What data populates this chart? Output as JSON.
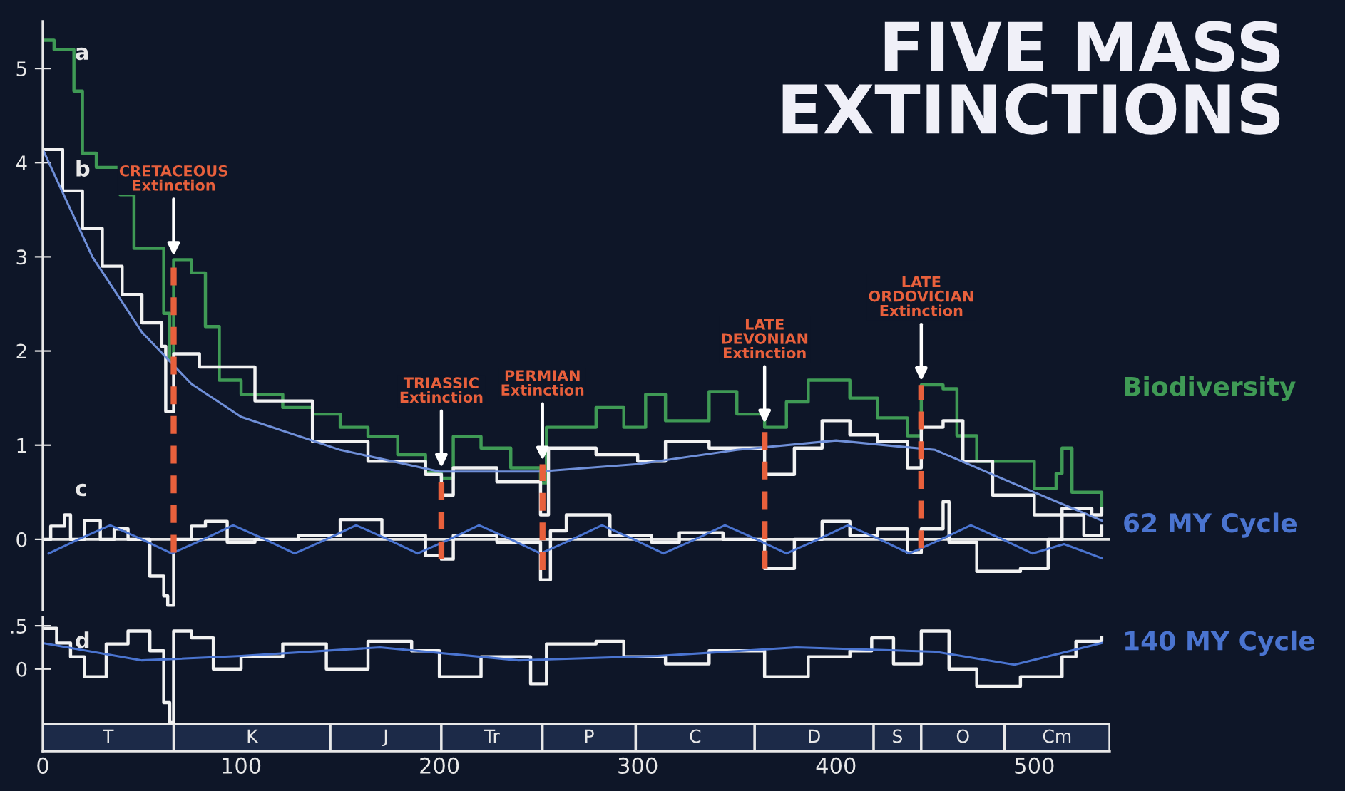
{
  "chart_data": [
    {
      "type": "line",
      "title": "FIVE MASS\nEXTINCTIONS",
      "xlim": [
        0,
        538
      ],
      "ylim": [
        -0.75,
        5.5
      ],
      "yticks": [
        0,
        1,
        2,
        3,
        4,
        5
      ],
      "tick_labels": "y",
      "grid": false,
      "legend": false,
      "line_style": "solid",
      "series": [
        {
          "name": "Biodiversity",
          "type": "step",
          "color": "#3f9a55",
          "x": [
            0,
            5.7,
            15.7,
            20,
            27,
            39,
            46,
            61,
            64,
            66,
            75,
            82,
            89,
            100,
            121,
            136,
            150,
            164,
            179,
            193,
            201,
            207,
            221,
            236,
            251,
            254,
            279,
            293,
            304,
            314,
            336,
            350,
            364,
            375,
            386,
            407,
            421,
            436,
            443,
            454,
            461,
            471,
            500,
            511,
            514,
            519,
            534
          ],
          "values": [
            5.3,
            5.2,
            4.76,
            4.1,
            3.95,
            3.66,
            3.09,
            2.4,
            1.9,
            2.97,
            2.83,
            2.26,
            1.69,
            1.54,
            1.4,
            1.33,
            1.19,
            1.09,
            0.9,
            0.71,
            0.65,
            1.09,
            0.97,
            0.76,
            0.6,
            1.19,
            1.4,
            1.19,
            1.54,
            1.26,
            1.57,
            1.33,
            1.19,
            1.46,
            1.69,
            1.5,
            1.29,
            1.1,
            1.64,
            1.6,
            1.1,
            0.83,
            0.54,
            0.7,
            0.97,
            0.5,
            0.3
          ]
        },
        {
          "type": "step",
          "color": "#f2f2f2",
          "x": [
            0,
            10,
            20,
            30,
            40,
            50,
            60,
            62,
            64,
            66,
            79,
            107,
            136,
            164,
            193,
            201,
            207,
            229,
            251,
            255,
            279,
            300,
            314,
            336,
            364,
            379,
            393,
            407,
            421,
            436,
            443,
            454,
            464,
            479,
            500,
            514,
            529,
            534
          ],
          "values": [
            4.14,
            3.7,
            3.3,
            2.9,
            2.6,
            2.3,
            2.05,
            1.36,
            1.36,
            1.97,
            1.83,
            1.47,
            1.04,
            0.83,
            0.69,
            0.47,
            0.76,
            0.61,
            0.26,
            0.97,
            0.9,
            0.83,
            1.04,
            0.97,
            0.69,
            0.97,
            1.26,
            1.11,
            1.04,
            0.76,
            1.19,
            1.26,
            0.83,
            0.47,
            0.26,
            0.33,
            0.26,
            0.33
          ]
        },
        {
          "type": "line",
          "color": "#6f8fd8",
          "x": [
            0,
            25,
            50,
            75,
            100,
            150,
            200,
            250,
            300,
            350,
            400,
            450,
            500,
            534
          ],
          "values": [
            4.14,
            3.0,
            2.2,
            1.65,
            1.3,
            0.95,
            0.72,
            0.72,
            0.8,
            0.95,
            1.05,
            0.95,
            0.5,
            0.2
          ]
        },
        {
          "type": "step",
          "color": "#f2f2f2",
          "x": [
            0,
            4,
            11,
            14,
            21,
            29,
            36,
            43,
            54,
            61,
            63,
            66,
            75,
            82,
            93,
            107,
            129,
            150,
            171,
            193,
            201,
            207,
            229,
            251,
            256,
            264,
            286,
            307,
            321,
            343,
            364,
            379,
            393,
            407,
            421,
            436,
            443,
            454,
            457,
            471,
            493,
            507,
            514,
            525,
            534
          ],
          "values": [
            0,
            0.14,
            0.26,
            0.0,
            0.2,
            0.0,
            0.11,
            0.0,
            -0.39,
            -0.6,
            -0.7,
            0.0,
            0.14,
            0.19,
            -0.03,
            0.0,
            0.04,
            0.21,
            0.04,
            -0.17,
            -0.21,
            0.04,
            -0.03,
            -0.43,
            0.09,
            0.26,
            0.04,
            -0.03,
            0.07,
            0.0,
            -0.31,
            0.0,
            0.19,
            0.04,
            0.11,
            -0.14,
            0.11,
            0.4,
            -0.03,
            -0.34,
            -0.31,
            0.0,
            0.26,
            0.04,
            0.14
          ]
        },
        {
          "name": "62 MY Cycle",
          "type": "line",
          "color": "#4a74d0",
          "x": [
            3,
            18,
            34,
            50,
            65,
            81,
            96,
            112,
            127,
            143,
            158,
            174,
            189,
            205,
            220,
            236,
            251,
            267,
            282,
            298,
            313,
            329,
            344,
            360,
            375,
            391,
            406,
            422,
            437,
            453,
            468,
            484,
            499,
            515,
            534
          ],
          "values": [
            -0.15,
            0,
            0.15,
            0,
            -0.15,
            0,
            0.15,
            0,
            -0.15,
            0,
            0.15,
            0,
            -0.15,
            0,
            0.15,
            0,
            -0.15,
            0,
            0.15,
            0,
            -0.15,
            0,
            0.15,
            0,
            -0.15,
            0,
            0.15,
            0,
            -0.15,
            0,
            0.15,
            0,
            -0.15,
            -0.05,
            -0.2
          ]
        }
      ],
      "ref_lines": [
        {
          "axis": "y",
          "value": 0,
          "color": "#e6e6e6"
        },
        {
          "axis": "x",
          "value": 66,
          "label": "CRETACEOUS\nExtinction",
          "color": "#e8603c",
          "line_style": "dashed"
        },
        {
          "axis": "x",
          "value": 201,
          "label": "TRIASSIC\nExtinction",
          "color": "#e8603c",
          "line_style": "dashed"
        },
        {
          "axis": "x",
          "value": 252,
          "label": "PERMIAN\nExtinction",
          "color": "#e8603c",
          "line_style": "dashed"
        },
        {
          "axis": "x",
          "value": 364,
          "label": "LATE\nDEVONIAN\nExtinction",
          "color": "#e8603c",
          "line_style": "dashed"
        },
        {
          "axis": "x",
          "value": 443,
          "label": "LATE\nORDOVICIAN\nExtinction",
          "color": "#e8603c",
          "line_style": "dashed"
        }
      ],
      "annotations": [
        "a",
        "b",
        "c"
      ]
    },
    {
      "type": "line",
      "xlim": [
        0,
        538
      ],
      "ylim": [
        -0.95,
        0.6
      ],
      "xticks": [
        0,
        100,
        200,
        300,
        400,
        500
      ],
      "yticks": [
        0,
        {
          "value": 0.5,
          "label": ".5"
        }
      ],
      "grid": false,
      "legend": false,
      "line_style": "solid",
      "series": [
        {
          "type": "step",
          "color": "#f2f2f2",
          "x": [
            0,
            7,
            14,
            21,
            32,
            43,
            54,
            61,
            64,
            66,
            75,
            86,
            100,
            121,
            143,
            164,
            186,
            200,
            221,
            246,
            254,
            279,
            293,
            314,
            336,
            364,
            386,
            407,
            418,
            429,
            443,
            457,
            471,
            493,
            514,
            521,
            534
          ],
          "values": [
            0.47,
            0.3,
            0.14,
            -0.09,
            0.29,
            0.44,
            0.21,
            -0.39,
            -0.62,
            0.44,
            0.36,
            0.0,
            0.14,
            0.29,
            0.0,
            0.32,
            0.21,
            -0.09,
            0.14,
            -0.17,
            0.29,
            0.32,
            0.14,
            0.06,
            0.21,
            -0.09,
            0.14,
            0.21,
            0.36,
            0.06,
            0.44,
            0.0,
            -0.2,
            -0.09,
            0.14,
            0.32,
            0.36
          ]
        },
        {
          "name": "140 MY Cycle",
          "type": "line",
          "color": "#4a74d0",
          "x": [
            0,
            50,
            100,
            170,
            240,
            310,
            380,
            450,
            490,
            534
          ],
          "values": [
            0.3,
            0.1,
            0.15,
            0.25,
            0.1,
            0.15,
            0.25,
            0.2,
            0.05,
            0.3
          ]
        }
      ],
      "bands": [
        {
          "axis": "x",
          "from": 0,
          "to": 66,
          "label": "T",
          "color": "#1c2a48"
        },
        {
          "axis": "x",
          "from": 66,
          "to": 145,
          "label": "K",
          "color": "#1c2a48"
        },
        {
          "axis": "x",
          "from": 145,
          "to": 201,
          "label": "J",
          "color": "#1c2a48"
        },
        {
          "axis": "x",
          "from": 201,
          "to": 252,
          "label": "Tr",
          "color": "#1c2a48"
        },
        {
          "axis": "x",
          "from": 252,
          "to": 299,
          "label": "P",
          "color": "#1c2a48"
        },
        {
          "axis": "x",
          "from": 299,
          "to": 359,
          "label": "C",
          "color": "#1c2a48"
        },
        {
          "axis": "x",
          "from": 359,
          "to": 419,
          "label": "D",
          "color": "#1c2a48"
        },
        {
          "axis": "x",
          "from": 419,
          "to": 443,
          "label": "S",
          "color": "#1c2a48"
        },
        {
          "axis": "x",
          "from": 443,
          "to": 485,
          "label": "O",
          "color": "#1c2a48"
        },
        {
          "axis": "x",
          "from": 485,
          "to": 538,
          "label": "Cm",
          "color": "#1c2a48"
        }
      ],
      "annotations": [
        "d"
      ]
    }
  ]
}
